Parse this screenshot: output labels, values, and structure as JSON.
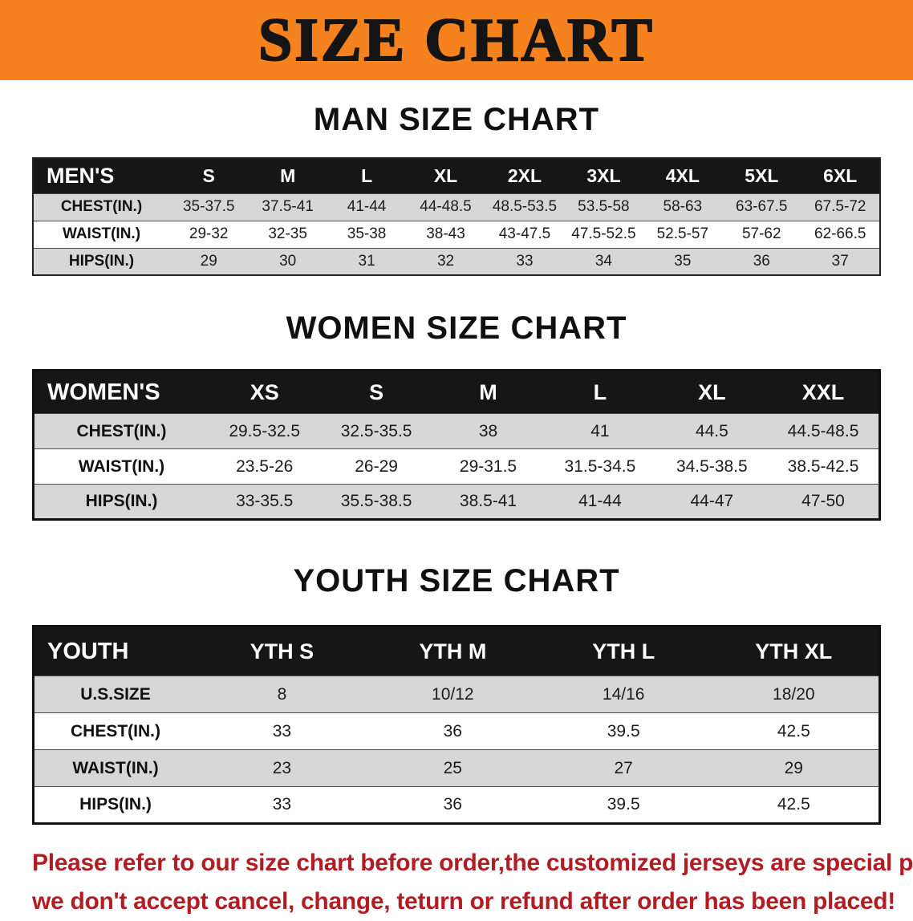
{
  "banner": {
    "title": "SIZE CHART",
    "bg_color": "#f5821f",
    "text_color": "#141414"
  },
  "sections": [
    {
      "id": "men",
      "heading": "MAN SIZE CHART",
      "table": {
        "header": [
          "MEN'S",
          "S",
          "M",
          "L",
          "XL",
          "2XL",
          "3XL",
          "4XL",
          "5XL",
          "6XL"
        ],
        "rows": [
          [
            "CHEST(IN.)",
            "35-37.5",
            "37.5-41",
            "41-44",
            "44-48.5",
            "48.5-53.5",
            "53.5-58",
            "58-63",
            "63-67.5",
            "67.5-72"
          ],
          [
            "WAIST(IN.)",
            "29-32",
            "32-35",
            "35-38",
            "38-43",
            "43-47.5",
            "47.5-52.5",
            "52.5-57",
            "57-62",
            "62-66.5"
          ],
          [
            "HIPS(IN.)",
            "29",
            "30",
            "31",
            "32",
            "33",
            "34",
            "35",
            "36",
            "37"
          ]
        ]
      }
    },
    {
      "id": "women",
      "heading": "WOMEN SIZE CHART",
      "table": {
        "header": [
          "WOMEN'S",
          "XS",
          "S",
          "M",
          "L",
          "XL",
          "XXL"
        ],
        "rows": [
          [
            "CHEST(IN.)",
            "29.5-32.5",
            "32.5-35.5",
            "38",
            "41",
            "44.5",
            "44.5-48.5"
          ],
          [
            "WAIST(IN.)",
            "23.5-26",
            "26-29",
            "29-31.5",
            "31.5-34.5",
            "34.5-38.5",
            "38.5-42.5"
          ],
          [
            "HIPS(IN.)",
            "33-35.5",
            "35.5-38.5",
            "38.5-41",
            "41-44",
            "44-47",
            "47-50"
          ]
        ]
      }
    },
    {
      "id": "youth",
      "heading": "YOUTH SIZE CHART",
      "table": {
        "header": [
          "YOUTH",
          "YTH S",
          "YTH M",
          "YTH L",
          "YTH XL"
        ],
        "rows": [
          [
            "U.S.SIZE",
            "8",
            "10/12",
            "14/16",
            "18/20"
          ],
          [
            "CHEST(IN.)",
            "33",
            "36",
            "39.5",
            "42.5"
          ],
          [
            "WAIST(IN.)",
            "23",
            "25",
            "27",
            "29"
          ],
          [
            "HIPS(IN.)",
            "33",
            "36",
            "39.5",
            "42.5"
          ]
        ]
      }
    }
  ],
  "footer": {
    "line1": "Please refer to our size chart before order,the customized jerseys are special products,",
    "line2": "we don't accept cancel, change, teturn or refund after order has been placed!",
    "text_color": "#b01e23"
  },
  "colors": {
    "table_header_bg": "#161616",
    "table_row_shade": "#d7d7d7",
    "banner_orange": "#f5821f"
  }
}
